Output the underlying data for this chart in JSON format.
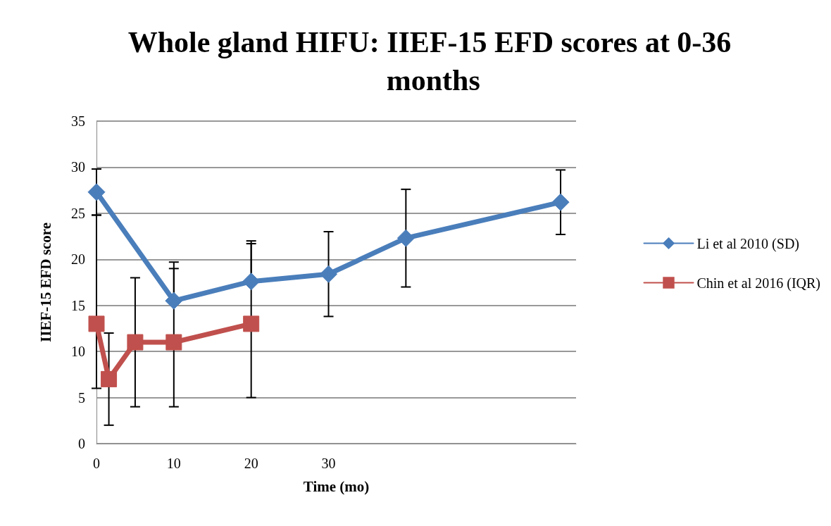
{
  "chart_data": {
    "type": "line",
    "title": "Whole gland HIFU: IIEF-15 EFD scores at 0-36 months",
    "xlabel": "Time (mo)",
    "ylabel": "IIEF-15 EFD score",
    "xlim": [
      0,
      62
    ],
    "xticks": [
      0,
      10,
      20,
      30
    ],
    "ylim": [
      0,
      35
    ],
    "yticks": [
      0,
      5,
      10,
      15,
      20,
      25,
      30,
      35
    ],
    "grid": "y",
    "legend": "right",
    "series": [
      {
        "name": "Li et al 2010 (SD)",
        "color": "#4a7ebb",
        "marker": "diamond",
        "x": [
          0,
          10,
          20,
          30,
          40,
          60
        ],
        "values": [
          27.3,
          15.5,
          17.6,
          18.4,
          22.3,
          26.2
        ],
        "errors": [
          [
            24.8,
            29.8
          ],
          [
            15.5,
            19.7
          ],
          [
            17.6,
            22.0
          ],
          [
            13.8,
            23.0
          ],
          [
            17.0,
            27.6
          ],
          [
            22.7,
            29.7
          ]
        ]
      },
      {
        "name": "Chin et al 2016 (IQR)",
        "color": "#c0504d",
        "marker": "square",
        "x": [
          0,
          1.6,
          5,
          10,
          20
        ],
        "values": [
          13,
          7,
          11,
          11,
          13
        ],
        "errors": [
          [
            6,
            24.8
          ],
          [
            2,
            12
          ],
          [
            4,
            18
          ],
          [
            4,
            19.0
          ],
          [
            5,
            21.7
          ]
        ]
      }
    ]
  }
}
